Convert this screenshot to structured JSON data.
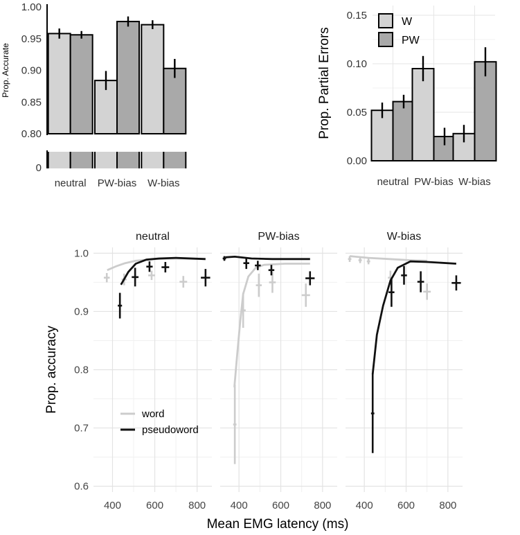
{
  "chart_data": [
    {
      "type": "bar",
      "title": "",
      "xlabel": "",
      "ylabel": "Prop. Accurate",
      "ylim": [
        0.8,
        1.0
      ],
      "y_axis_break": true,
      "y_ticks": [
        "1.00",
        "0.95",
        "0.90",
        "0.85",
        "0.80",
        "0"
      ],
      "categories": [
        "neutral",
        "PW-bias",
        "W-bias"
      ],
      "series": [
        {
          "name": "W",
          "color": "#d3d3d3",
          "values": [
            0.958,
            0.884,
            0.972
          ],
          "err": [
            0.008,
            0.015,
            0.007
          ]
        },
        {
          "name": "PW",
          "color": "#a9a9a9",
          "values": [
            0.956,
            0.977,
            0.903
          ],
          "err": [
            0.006,
            0.008,
            0.015
          ]
        }
      ]
    },
    {
      "type": "bar",
      "title": "",
      "xlabel": "",
      "ylabel": "Prop. Partial Errors",
      "ylim": [
        0,
        0.16
      ],
      "y_ticks": [
        "0.15",
        "0.10",
        "0.05",
        "0.00"
      ],
      "categories": [
        "neutral",
        "PW-bias",
        "W-bias"
      ],
      "legend": {
        "position": "top-left",
        "entries": [
          "W",
          "PW"
        ]
      },
      "series": [
        {
          "name": "W",
          "color": "#d3d3d3",
          "values": [
            0.052,
            0.095,
            0.028
          ],
          "err": [
            0.008,
            0.013,
            0.009
          ]
        },
        {
          "name": "PW",
          "color": "#a9a9a9",
          "values": [
            0.061,
            0.025,
            0.102
          ],
          "err": [
            0.007,
            0.009,
            0.015
          ]
        }
      ]
    },
    {
      "type": "line",
      "title": "",
      "xlabel": "Mean EMG latency (ms)",
      "ylabel": "Prop. accuracy",
      "xlim": [
        310,
        870
      ],
      "ylim": [
        0.59,
        1.01
      ],
      "x_ticks": [
        "400",
        "600",
        "800"
      ],
      "y_ticks": [
        "1.0",
        "0.9",
        "0.8",
        "0.7",
        "0.6"
      ],
      "legend": {
        "position": "bottom-left",
        "entries": [
          "word",
          "pseudoword"
        ]
      },
      "panels": [
        {
          "label": "neutral",
          "series": [
            {
              "name": "word",
              "color": "#cccccc",
              "line": [
                [
                  375,
                  0.971
                ],
                [
                  420,
                  0.978
                ],
                [
                  460,
                  0.983
                ],
                [
                  510,
                  0.987
                ],
                [
                  600,
                  0.99
                ],
                [
                  700,
                  0.991
                ],
                [
                  840,
                  0.99
                ]
              ],
              "points": [
                {
                  "x": 373,
                  "y": 0.958,
                  "xe": 14,
                  "ye": 0.008
                },
                {
                  "x": 455,
                  "y": 0.955,
                  "xe": 12,
                  "ye": 0.01
                },
                {
                  "x": 585,
                  "y": 0.962,
                  "xe": 16,
                  "ye": 0.008
                },
                {
                  "x": 735,
                  "y": 0.951,
                  "xe": 18,
                  "ye": 0.01
                }
              ]
            },
            {
              "name": "pseudoword",
              "color": "#111111",
              "line": [
                [
                  440,
                  0.946
                ],
                [
                  475,
                  0.968
                ],
                [
                  510,
                  0.982
                ],
                [
                  560,
                  0.989
                ],
                [
                  620,
                  0.991
                ],
                [
                  700,
                  0.992
                ],
                [
                  840,
                  0.99
                ]
              ],
              "points": [
                {
                  "x": 435,
                  "y": 0.91,
                  "xe": 10,
                  "ye": 0.022
                },
                {
                  "x": 507,
                  "y": 0.959,
                  "xe": 16,
                  "ye": 0.016
                },
                {
                  "x": 575,
                  "y": 0.977,
                  "xe": 15,
                  "ye": 0.009
                },
                {
                  "x": 650,
                  "y": 0.976,
                  "xe": 18,
                  "ye": 0.009
                },
                {
                  "x": 840,
                  "y": 0.958,
                  "xe": 22,
                  "ye": 0.015
                }
              ]
            }
          ]
        },
        {
          "label": "PW-bias",
          "series": [
            {
              "name": "word",
              "color": "#cccccc",
              "line": [
                [
                  378,
                  0.77
                ],
                [
                  390,
                  0.82
                ],
                [
                  405,
                  0.88
                ],
                [
                  420,
                  0.93
                ],
                [
                  445,
                  0.96
                ],
                [
                  480,
                  0.975
                ],
                [
                  520,
                  0.98
                ],
                [
                  620,
                  0.982
                ],
                [
                  740,
                  0.982
                ]
              ],
              "points": [
                {
                  "x": 380,
                  "y": 0.706,
                  "xe": 8,
                  "ye": 0.068
                },
                {
                  "x": 420,
                  "y": 0.902,
                  "xe": 12,
                  "ye": 0.03
                },
                {
                  "x": 495,
                  "y": 0.945,
                  "xe": 14,
                  "ye": 0.02
                },
                {
                  "x": 560,
                  "y": 0.95,
                  "xe": 16,
                  "ye": 0.018
                },
                {
                  "x": 720,
                  "y": 0.928,
                  "xe": 20,
                  "ye": 0.02
                }
              ]
            },
            {
              "name": "pseudoword",
              "color": "#111111",
              "line": [
                [
                  335,
                  0.993
                ],
                [
                  380,
                  0.994
                ],
                [
                  460,
                  0.991
                ],
                [
                  560,
                  0.99
                ],
                [
                  740,
                  0.99
                ]
              ],
              "points": [
                {
                  "x": 330,
                  "y": 0.991,
                  "xe": 8,
                  "ye": 0.004
                },
                {
                  "x": 435,
                  "y": 0.983,
                  "xe": 14,
                  "ye": 0.01
                },
                {
                  "x": 490,
                  "y": 0.979,
                  "xe": 14,
                  "ye": 0.008
                },
                {
                  "x": 555,
                  "y": 0.971,
                  "xe": 14,
                  "ye": 0.009
                },
                {
                  "x": 740,
                  "y": 0.957,
                  "xe": 22,
                  "ye": 0.012
                }
              ]
            }
          ]
        },
        {
          "label": "W-bias",
          "series": [
            {
              "name": "word",
              "color": "#cccccc",
              "line": [
                [
                  330,
                  0.995
                ],
                [
                  420,
                  0.992
                ],
                [
                  520,
                  0.99
                ],
                [
                  620,
                  0.988
                ],
                [
                  700,
                  0.987
                ]
              ],
              "points": [
                {
                  "x": 330,
                  "y": 0.99,
                  "xe": 8,
                  "ye": 0.005
                },
                {
                  "x": 380,
                  "y": 0.988,
                  "xe": 8,
                  "ye": 0.005
                },
                {
                  "x": 420,
                  "y": 0.986,
                  "xe": 8,
                  "ye": 0.005
                },
                {
                  "x": 525,
                  "y": 0.958,
                  "xe": 12,
                  "ye": 0.012
                },
                {
                  "x": 700,
                  "y": 0.934,
                  "xe": 18,
                  "ye": 0.014
                }
              ]
            },
            {
              "name": "pseudoword",
              "color": "#111111",
              "line": [
                [
                  440,
                  0.792
                ],
                [
                  460,
                  0.86
                ],
                [
                  490,
                  0.91
                ],
                [
                  525,
                  0.953
                ],
                [
                  560,
                  0.975
                ],
                [
                  620,
                  0.986
                ],
                [
                  700,
                  0.985
                ],
                [
                  840,
                  0.982
                ]
              ],
              "points": [
                {
                  "x": 440,
                  "y": 0.725,
                  "xe": 8,
                  "ye": 0.068
                },
                {
                  "x": 530,
                  "y": 0.933,
                  "xe": 14,
                  "ye": 0.025
                },
                {
                  "x": 590,
                  "y": 0.962,
                  "xe": 14,
                  "ye": 0.016
                },
                {
                  "x": 670,
                  "y": 0.951,
                  "xe": 16,
                  "ye": 0.018
                },
                {
                  "x": 840,
                  "y": 0.949,
                  "xe": 22,
                  "ye": 0.013
                }
              ]
            }
          ]
        }
      ]
    }
  ]
}
